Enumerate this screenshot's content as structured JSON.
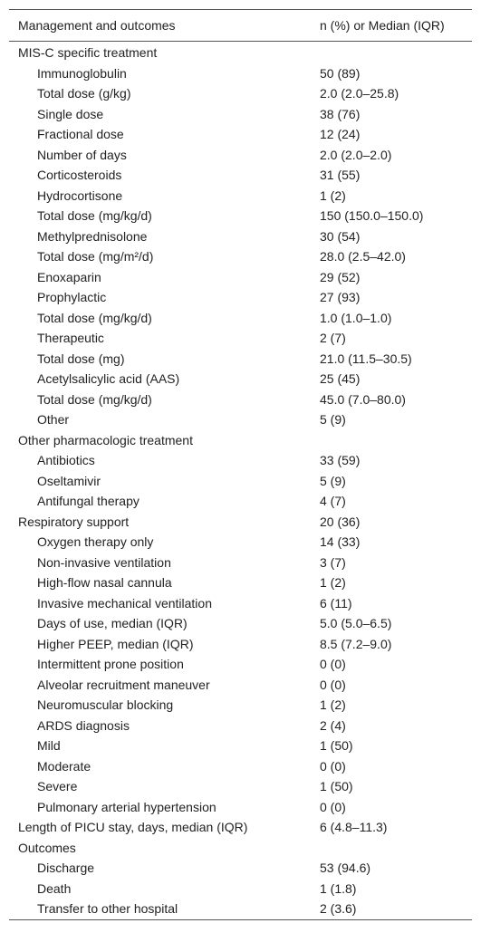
{
  "table": {
    "header": [
      "Management and outcomes",
      "n (%) or Median (IQR)"
    ],
    "sections": [
      {
        "label": "MIS-C specific treatment",
        "items": [
          [
            "Immunoglobulin",
            "50 (89)"
          ],
          [
            "Total dose (g/kg)",
            "2.0 (2.0–25.8)"
          ],
          [
            "Single dose",
            "38 (76)"
          ],
          [
            "Fractional dose",
            "12 (24)"
          ],
          [
            "Number of days",
            "2.0 (2.0–2.0)"
          ],
          [
            "Corticosteroids",
            "31 (55)"
          ],
          [
            "Hydrocortisone",
            "1 (2)"
          ],
          [
            "Total dose (mg/kg/d)",
            "150 (150.0–150.0)"
          ],
          [
            "Methylprednisolone",
            "30 (54)"
          ],
          [
            "Total dose (mg/m²/d)",
            "28.0 (2.5–42.0)"
          ],
          [
            "Enoxaparin",
            "29 (52)"
          ],
          [
            "Prophylactic",
            "27 (93)"
          ],
          [
            "Total dose (mg/kg/d)",
            "1.0 (1.0–1.0)"
          ],
          [
            "Therapeutic",
            "2 (7)"
          ],
          [
            "Total dose (mg)",
            "21.0 (11.5–30.5)"
          ],
          [
            "Acetylsalicylic acid (AAS)",
            "25 (45)"
          ],
          [
            "Total dose (mg/kg/d)",
            "45.0 (7.0–80.0)"
          ],
          [
            "Other",
            "5 (9)"
          ]
        ]
      },
      {
        "label": "Other pharmacologic treatment",
        "items": [
          [
            "Antibiotics",
            "33 (59)"
          ],
          [
            "Oseltamivir",
            "5 (9)"
          ],
          [
            "Antifungal therapy",
            "4 (7)"
          ]
        ]
      },
      {
        "label": "Respiratory support",
        "value": "20 (36)",
        "items": [
          [
            "Oxygen therapy only",
            "14 (33)"
          ],
          [
            "Non-invasive ventilation",
            "3 (7)"
          ],
          [
            "High-flow nasal cannula",
            "1 (2)"
          ],
          [
            "Invasive mechanical ventilation",
            "6 (11)"
          ],
          [
            "Days of use, median (IQR)",
            "5.0 (5.0–6.5)"
          ],
          [
            "Higher PEEP, median (IQR)",
            "8.5 (7.2–9.0)"
          ],
          [
            "Intermittent prone position",
            "0 (0)"
          ],
          [
            "Alveolar recruitment maneuver",
            "0 (0)"
          ],
          [
            "Neuromuscular blocking",
            "1 (2)"
          ],
          [
            "ARDS diagnosis",
            "2 (4)"
          ],
          [
            "Mild",
            "1 (50)"
          ],
          [
            "Moderate",
            "0 (0)"
          ],
          [
            "Severe",
            "1 (50)"
          ],
          [
            "Pulmonary arterial hypertension",
            "0 (0)"
          ]
        ]
      },
      {
        "label": "Length of PICU stay, days, median (IQR)",
        "value": "6 (4.8–11.3)",
        "items": []
      },
      {
        "label": "Outcomes",
        "items": [
          [
            "Discharge",
            "53 (94.6)"
          ],
          [
            "Death",
            "1 (1.8)"
          ],
          [
            "Transfer to other hospital",
            "2 (3.6)"
          ]
        ]
      }
    ]
  }
}
